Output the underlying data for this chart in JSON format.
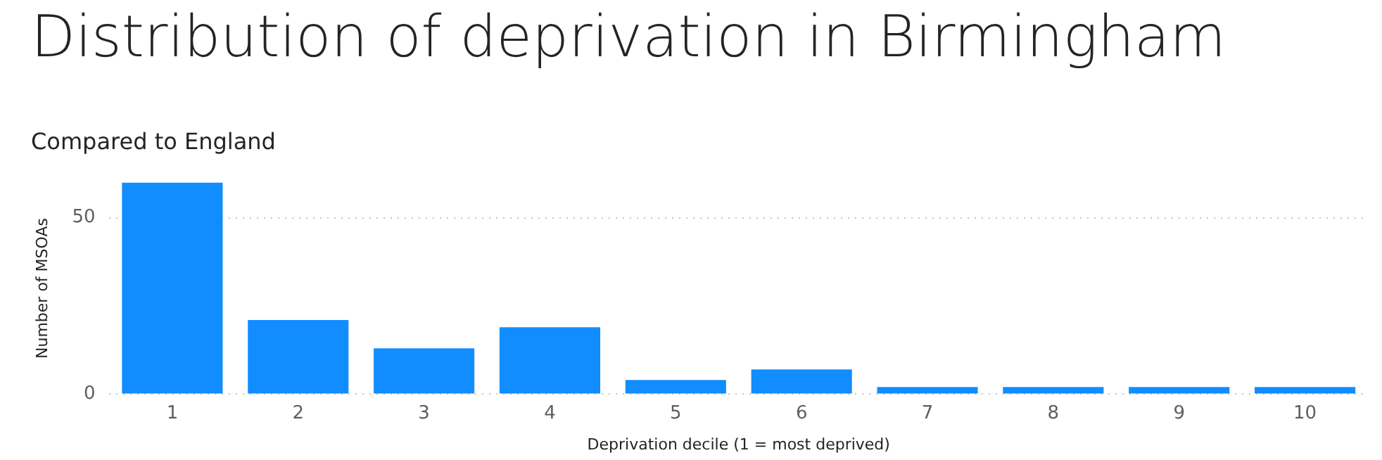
{
  "chart_data": {
    "type": "bar",
    "title": "Distribution of deprivation in Birmingham",
    "subtitle": "Compared to England",
    "xlabel": "Deprivation decile (1 = most deprived)",
    "ylabel": "Number of MSOAs",
    "categories": [
      "1",
      "2",
      "3",
      "4",
      "5",
      "6",
      "7",
      "8",
      "9",
      "10"
    ],
    "values": [
      60,
      21,
      13,
      19,
      4,
      7,
      2,
      2,
      2,
      2
    ],
    "color": "#118dff",
    "ylim": [
      0,
      60
    ],
    "yticks": [
      0,
      50
    ],
    "grid": "y"
  }
}
